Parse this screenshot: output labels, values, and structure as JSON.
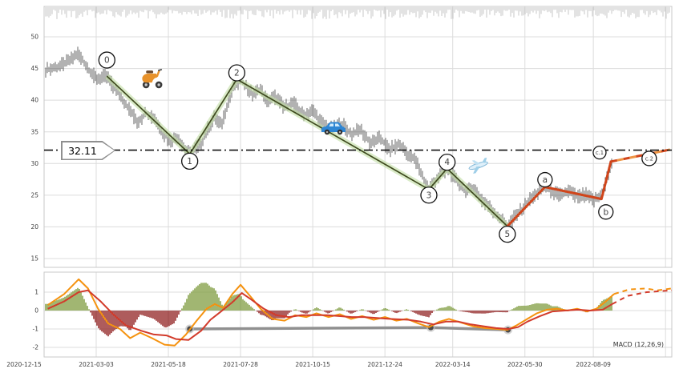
{
  "chart_data": [
    {
      "panel": "price",
      "type": "candlestick",
      "yticks": [
        50,
        45,
        40,
        35,
        30,
        25,
        20,
        15
      ],
      "ylim": [
        13.6,
        54.8
      ],
      "x_ticks": [
        {
          "t": 0.0,
          "label": "2020-12-15"
        },
        {
          "t": 0.083,
          "label": "2021-03-03"
        },
        {
          "t": 0.198,
          "label": "2021-05-18"
        },
        {
          "t": 0.313,
          "label": "2021-07-28"
        },
        {
          "t": 0.428,
          "label": "2021-10-15"
        },
        {
          "t": 0.543,
          "label": "2021-12-24"
        },
        {
          "t": 0.651,
          "label": "2022-03-14"
        },
        {
          "t": 0.766,
          "label": "2022-05-30"
        },
        {
          "t": 0.875,
          "label": "2022-08-09"
        }
      ],
      "extra_gridline_t": 0.99,
      "horizontal_line": {
        "value": 32.11,
        "label": "32.11",
        "style": "dash-dot",
        "color": "#111111"
      },
      "price_path": [
        [
          0.005,
          44.8
        ],
        [
          0.022,
          45.2
        ],
        [
          0.042,
          46.3
        ],
        [
          0.054,
          47.4
        ],
        [
          0.063,
          46.0
        ],
        [
          0.073,
          44.6
        ],
        [
          0.083,
          43.4
        ],
        [
          0.1,
          43.8
        ],
        [
          0.111,
          42.0
        ],
        [
          0.124,
          40.3
        ],
        [
          0.138,
          38.2
        ],
        [
          0.149,
          36.6
        ],
        [
          0.163,
          38.0
        ],
        [
          0.176,
          37.2
        ],
        [
          0.189,
          34.8
        ],
        [
          0.202,
          33.5
        ],
        [
          0.213,
          34.3
        ],
        [
          0.223,
          32.4
        ],
        [
          0.232,
          31.5
        ],
        [
          0.243,
          32.6
        ],
        [
          0.252,
          33.5
        ],
        [
          0.262,
          35.8
        ],
        [
          0.272,
          37.4
        ],
        [
          0.282,
          36.0
        ],
        [
          0.292,
          39.5
        ],
        [
          0.303,
          42.3
        ],
        [
          0.313,
          43.2
        ],
        [
          0.323,
          42.0
        ],
        [
          0.333,
          40.8
        ],
        [
          0.344,
          41.8
        ],
        [
          0.356,
          39.8
        ],
        [
          0.369,
          40.6
        ],
        [
          0.382,
          38.8
        ],
        [
          0.397,
          39.6
        ],
        [
          0.413,
          37.6
        ],
        [
          0.428,
          38.4
        ],
        [
          0.443,
          36.3
        ],
        [
          0.459,
          35.4
        ],
        [
          0.474,
          36.4
        ],
        [
          0.489,
          34.6
        ],
        [
          0.504,
          35.4
        ],
        [
          0.52,
          33.2
        ],
        [
          0.535,
          34.0
        ],
        [
          0.55,
          32.2
        ],
        [
          0.566,
          33.0
        ],
        [
          0.581,
          31.4
        ],
        [
          0.594,
          30.2
        ],
        [
          0.604,
          27.6
        ],
        [
          0.613,
          25.9
        ],
        [
          0.622,
          27.2
        ],
        [
          0.632,
          28.3
        ],
        [
          0.642,
          29.2
        ],
        [
          0.653,
          27.8
        ],
        [
          0.663,
          26.6
        ],
        [
          0.673,
          25.4
        ],
        [
          0.683,
          26.4
        ],
        [
          0.693,
          24.8
        ],
        [
          0.705,
          23.6
        ],
        [
          0.716,
          22.4
        ],
        [
          0.728,
          21.2
        ],
        [
          0.738,
          20.1
        ],
        [
          0.748,
          21.4
        ],
        [
          0.76,
          22.6
        ],
        [
          0.773,
          24.2
        ],
        [
          0.785,
          25.3
        ],
        [
          0.798,
          26.2
        ],
        [
          0.811,
          25.4
        ],
        [
          0.824,
          24.9
        ],
        [
          0.836,
          25.7
        ],
        [
          0.849,
          24.7
        ],
        [
          0.862,
          25.1
        ],
        [
          0.875,
          24.2
        ],
        [
          0.885,
          24.6
        ],
        [
          0.893,
          26.5
        ],
        [
          0.899,
          28.6
        ],
        [
          0.905,
          30.3
        ]
      ],
      "elliott_waves": {
        "impulse": {
          "color": "#3f4b1f",
          "halo_color": "#c2dda4",
          "points": [
            [
              0.1,
              43.8
            ],
            [
              0.232,
              31.5
            ],
            [
              0.307,
              43.3
            ],
            [
              0.613,
              25.9
            ],
            [
              0.642,
              29.2
            ],
            [
              0.738,
              20.1
            ]
          ]
        },
        "corrective": {
          "color": "#d0451b",
          "dash_alt_color": "#ef9544",
          "solid_points": [
            [
              0.738,
              20.1
            ],
            [
              0.798,
              26.3
            ],
            [
              0.888,
              24.4
            ],
            [
              0.903,
              30.3
            ]
          ],
          "dashed_points": [
            [
              0.903,
              30.3
            ],
            [
              0.997,
              32.2
            ]
          ]
        }
      },
      "markers": [
        {
          "label": "0",
          "t": 0.1,
          "price": 43.8,
          "dy": -20,
          "r": 10
        },
        {
          "label": "1",
          "t": 0.232,
          "price": 31.5,
          "dy": 9,
          "r": 10
        },
        {
          "label": "2",
          "t": 0.307,
          "price": 43.3,
          "dy": -8,
          "r": 10
        },
        {
          "label": "3",
          "t": 0.613,
          "price": 25.9,
          "dy": 7,
          "r": 10
        },
        {
          "label": "4",
          "t": 0.642,
          "price": 29.2,
          "dy": -8,
          "r": 10
        },
        {
          "label": "5",
          "t": 0.738,
          "price": 20.1,
          "dy": 10,
          "r": 10
        },
        {
          "label": "a",
          "t": 0.798,
          "price": 26.3,
          "dy": -9,
          "r": 9
        },
        {
          "label": "b",
          "t": 0.895,
          "price": 24.5,
          "dy": 17,
          "r": 9
        },
        {
          "label": "c.1",
          "t": 0.885,
          "price": 31.6,
          "dy": -1,
          "r": 8
        },
        {
          "label": "c.2",
          "t": 0.964,
          "price": 30.8,
          "dy": 0,
          "r": 9
        }
      ],
      "icons": [
        {
          "name": "scooter-icon",
          "t": 0.172,
          "price": 43.6
        },
        {
          "name": "car-icon",
          "t": 0.461,
          "price": 35.6
        },
        {
          "name": "airplane-icon",
          "t": 0.691,
          "price": 29.9
        }
      ]
    },
    {
      "panel": "indicator",
      "type": "line",
      "label": "MACD (12,26,9)",
      "yticks": [
        1,
        0,
        -1,
        -2
      ],
      "series": [
        {
          "name": "macd",
          "color": "#f5920f",
          "points": [
            [
              0.006,
              0.3
            ],
            [
              0.032,
              0.9
            ],
            [
              0.055,
              1.7
            ],
            [
              0.07,
              1.2
            ],
            [
              0.086,
              0.1
            ],
            [
              0.102,
              -0.7
            ],
            [
              0.121,
              -1.0
            ],
            [
              0.137,
              -1.5
            ],
            [
              0.153,
              -1.2
            ],
            [
              0.172,
              -1.5
            ],
            [
              0.192,
              -1.85
            ],
            [
              0.208,
              -1.9
            ],
            [
              0.226,
              -1.3
            ],
            [
              0.243,
              -0.55
            ],
            [
              0.259,
              0.1
            ],
            [
              0.272,
              0.35
            ],
            [
              0.285,
              0.15
            ],
            [
              0.3,
              0.9
            ],
            [
              0.313,
              1.4
            ],
            [
              0.328,
              0.8
            ],
            [
              0.345,
              0.1
            ],
            [
              0.364,
              -0.45
            ],
            [
              0.383,
              -0.55
            ],
            [
              0.4,
              -0.25
            ],
            [
              0.418,
              -0.35
            ],
            [
              0.434,
              -0.15
            ],
            [
              0.453,
              -0.35
            ],
            [
              0.471,
              -0.2
            ],
            [
              0.489,
              -0.45
            ],
            [
              0.507,
              -0.3
            ],
            [
              0.525,
              -0.5
            ],
            [
              0.543,
              -0.35
            ],
            [
              0.561,
              -0.55
            ],
            [
              0.578,
              -0.45
            ],
            [
              0.596,
              -0.7
            ],
            [
              0.613,
              -0.9
            ],
            [
              0.63,
              -0.6
            ],
            [
              0.645,
              -0.45
            ],
            [
              0.664,
              -0.65
            ],
            [
              0.683,
              -0.85
            ],
            [
              0.702,
              -0.95
            ],
            [
              0.722,
              -1.0
            ],
            [
              0.738,
              -1.05
            ],
            [
              0.753,
              -0.8
            ],
            [
              0.77,
              -0.45
            ],
            [
              0.785,
              -0.15
            ],
            [
              0.801,
              0.05
            ],
            [
              0.817,
              0.1
            ],
            [
              0.834,
              0.0
            ],
            [
              0.849,
              0.1
            ],
            [
              0.865,
              -0.05
            ],
            [
              0.88,
              0.1
            ],
            [
              0.895,
              0.5
            ],
            [
              0.908,
              0.9
            ]
          ],
          "dashed_points": [
            [
              0.908,
              0.9
            ],
            [
              0.932,
              1.15
            ],
            [
              0.958,
              1.2
            ],
            [
              0.977,
              1.1
            ],
            [
              1.0,
              1.2
            ]
          ]
        },
        {
          "name": "signal",
          "color": "#d23a2a",
          "points": [
            [
              0.006,
              0.1
            ],
            [
              0.032,
              0.5
            ],
            [
              0.055,
              1.0
            ],
            [
              0.07,
              1.1
            ],
            [
              0.09,
              0.5
            ],
            [
              0.11,
              -0.2
            ],
            [
              0.13,
              -0.8
            ],
            [
              0.155,
              -1.1
            ],
            [
              0.175,
              -1.3
            ],
            [
              0.195,
              -1.35
            ],
            [
              0.21,
              -1.55
            ],
            [
              0.23,
              -1.6
            ],
            [
              0.25,
              -1.1
            ],
            [
              0.265,
              -0.5
            ],
            [
              0.28,
              -0.1
            ],
            [
              0.3,
              0.45
            ],
            [
              0.315,
              0.95
            ],
            [
              0.33,
              0.6
            ],
            [
              0.35,
              0.1
            ],
            [
              0.37,
              -0.25
            ],
            [
              0.39,
              -0.35
            ],
            [
              0.41,
              -0.25
            ],
            [
              0.43,
              -0.25
            ],
            [
              0.45,
              -0.25
            ],
            [
              0.47,
              -0.3
            ],
            [
              0.49,
              -0.35
            ],
            [
              0.51,
              -0.35
            ],
            [
              0.53,
              -0.4
            ],
            [
              0.55,
              -0.45
            ],
            [
              0.58,
              -0.5
            ],
            [
              0.6,
              -0.6
            ],
            [
              0.62,
              -0.75
            ],
            [
              0.64,
              -0.6
            ],
            [
              0.66,
              -0.6
            ],
            [
              0.68,
              -0.75
            ],
            [
              0.7,
              -0.85
            ],
            [
              0.72,
              -0.95
            ],
            [
              0.74,
              -1.0
            ],
            [
              0.755,
              -0.9
            ],
            [
              0.77,
              -0.6
            ],
            [
              0.79,
              -0.3
            ],
            [
              0.81,
              -0.05
            ],
            [
              0.83,
              0.0
            ],
            [
              0.85,
              0.05
            ],
            [
              0.87,
              0.0
            ],
            [
              0.89,
              0.05
            ],
            [
              0.905,
              0.35
            ]
          ],
          "dashed_points": [
            [
              0.905,
              0.35
            ],
            [
              0.93,
              0.8
            ],
            [
              0.96,
              1.0
            ],
            [
              1.0,
              1.1
            ]
          ]
        }
      ],
      "histogram": {
        "source": "macd-signal",
        "pos_color": "#7d9b3c",
        "neg_color": "#8f1f1f",
        "scale": 1.8
      },
      "trough_line": {
        "color": "#909090",
        "dot_color": "#4a4a4a",
        "points": [
          [
            0.232,
            -1.0
          ],
          [
            0.616,
            -0.92
          ],
          [
            0.739,
            -1.05
          ]
        ]
      }
    }
  ]
}
